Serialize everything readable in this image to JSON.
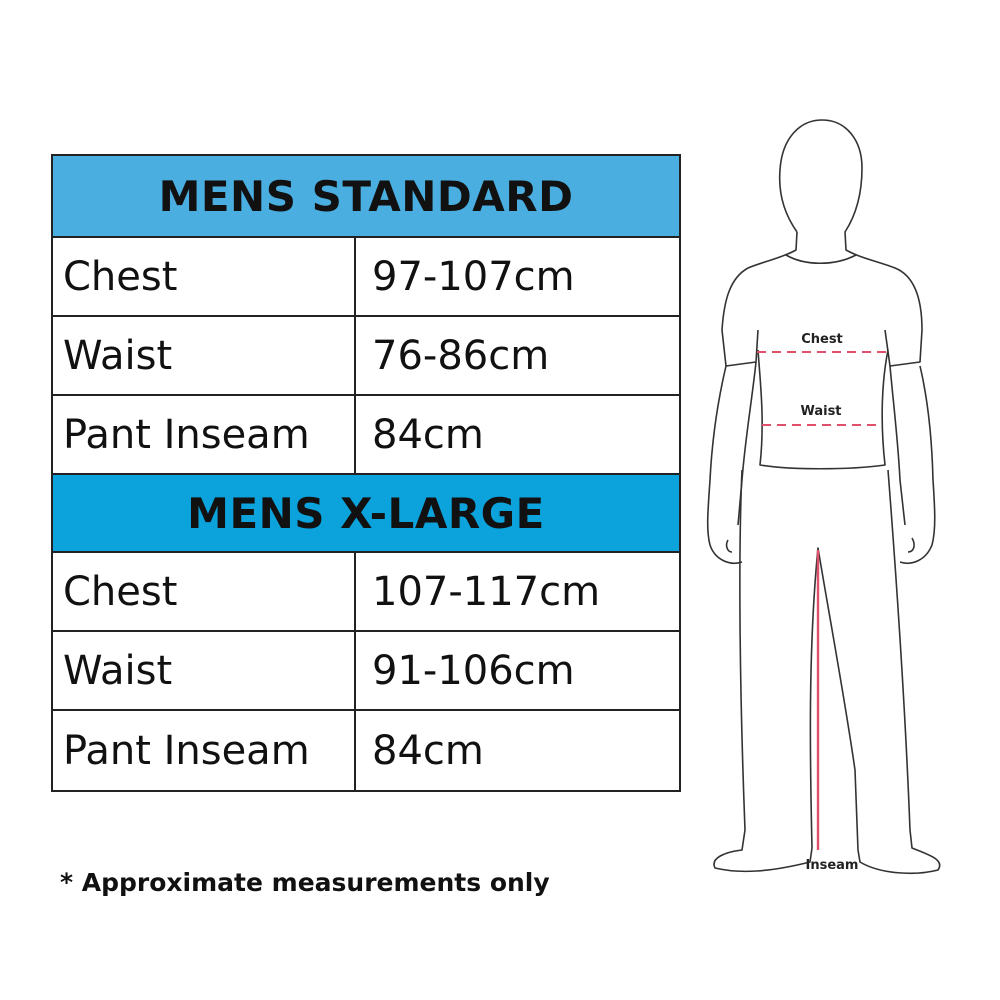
{
  "colors": {
    "standard_header": "#4aaee0",
    "xlarge_header": "#0ca2dc",
    "measure_line": "#e0506a"
  },
  "tables": [
    {
      "title": "MENS STANDARD",
      "rows": [
        {
          "label": "Chest",
          "value": "97-107cm"
        },
        {
          "label": "Waist",
          "value": "76-86cm"
        },
        {
          "label": "Pant Inseam",
          "value": "84cm"
        }
      ]
    },
    {
      "title": "MENS X-LARGE",
      "rows": [
        {
          "label": "Chest",
          "value": "107-117cm"
        },
        {
          "label": "Waist",
          "value": "91-106cm"
        },
        {
          "label": "Pant Inseam",
          "value": "84cm"
        }
      ]
    }
  ],
  "figure": {
    "chest_label": "Chest",
    "waist_label": "Waist",
    "inseam_label": "Inseam"
  },
  "footnote": "* Approximate measurements only"
}
